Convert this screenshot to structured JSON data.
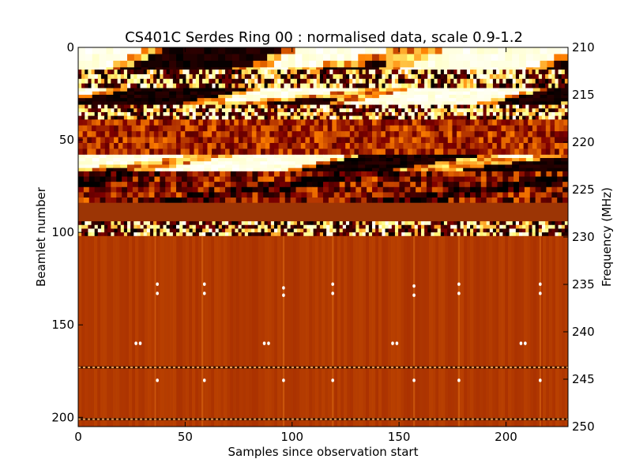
{
  "chart_data": {
    "type": "heatmap",
    "title": "CS401C Serdes Ring 00 : normalised data, scale 0.9-1.2",
    "xlabel": "Samples since observation start",
    "ylabel_left": "Beamlet number",
    "ylabel_right": "Frequency (MHz)",
    "xlim": [
      0,
      229
    ],
    "ylim_left": [
      205,
      0
    ],
    "ylim_right": [
      250,
      210
    ],
    "x_ticks": [
      0,
      50,
      100,
      150,
      200
    ],
    "y_ticks_left": [
      0,
      50,
      100,
      150,
      200
    ],
    "y_ticks_right": [
      210,
      215,
      220,
      225,
      230,
      235,
      240,
      245,
      250
    ],
    "colormap": "afmhot",
    "color_scale": [
      0.9,
      1.2
    ],
    "background_color": "#a83a05",
    "bands": [
      {
        "beamlet_start": 0,
        "beamlet_end": 18,
        "pattern": "blobs_high_contrast"
      },
      {
        "beamlet_start": 12,
        "beamlet_end": 22,
        "pattern": "striped_noise"
      },
      {
        "beamlet_start": 22,
        "beamlet_end": 31,
        "pattern": "blobs_high_contrast"
      },
      {
        "beamlet_start": 31,
        "beamlet_end": 39,
        "pattern": "striped_noise"
      },
      {
        "beamlet_start": 39,
        "beamlet_end": 58,
        "pattern": "textured_medium"
      },
      {
        "beamlet_start": 58,
        "beamlet_end": 67,
        "pattern": "blobs_high_contrast"
      },
      {
        "beamlet_start": 67,
        "beamlet_end": 84,
        "pattern": "textured_medium_dark"
      },
      {
        "beamlet_start": 84,
        "beamlet_end": 94,
        "pattern": "smooth"
      },
      {
        "beamlet_start": 94,
        "beamlet_end": 102,
        "pattern": "striped_noise"
      },
      {
        "beamlet_start": 102,
        "beamlet_end": 205,
        "pattern": "quiet_with_spikes"
      }
    ],
    "vertical_features_x": [
      36,
      58,
      96,
      119,
      157,
      178,
      216
    ],
    "hot_points": [
      {
        "x": 37,
        "y": 128
      },
      {
        "x": 37,
        "y": 133
      },
      {
        "x": 59,
        "y": 128
      },
      {
        "x": 59,
        "y": 133
      },
      {
        "x": 96,
        "y": 130
      },
      {
        "x": 96,
        "y": 134
      },
      {
        "x": 119,
        "y": 128
      },
      {
        "x": 119,
        "y": 133
      },
      {
        "x": 157,
        "y": 129
      },
      {
        "x": 157,
        "y": 134
      },
      {
        "x": 178,
        "y": 128
      },
      {
        "x": 178,
        "y": 133
      },
      {
        "x": 216,
        "y": 128
      },
      {
        "x": 216,
        "y": 133
      },
      {
        "x": 27,
        "y": 160
      },
      {
        "x": 29,
        "y": 160
      },
      {
        "x": 87,
        "y": 160
      },
      {
        "x": 89,
        "y": 160
      },
      {
        "x": 147,
        "y": 160
      },
      {
        "x": 149,
        "y": 160
      },
      {
        "x": 207,
        "y": 160
      },
      {
        "x": 209,
        "y": 160
      },
      {
        "x": 37,
        "y": 180
      },
      {
        "x": 59,
        "y": 180
      },
      {
        "x": 96,
        "y": 180
      },
      {
        "x": 119,
        "y": 180
      },
      {
        "x": 157,
        "y": 180
      },
      {
        "x": 178,
        "y": 180
      },
      {
        "x": 216,
        "y": 180
      }
    ],
    "dotted_rows_y": [
      173,
      201
    ]
  }
}
